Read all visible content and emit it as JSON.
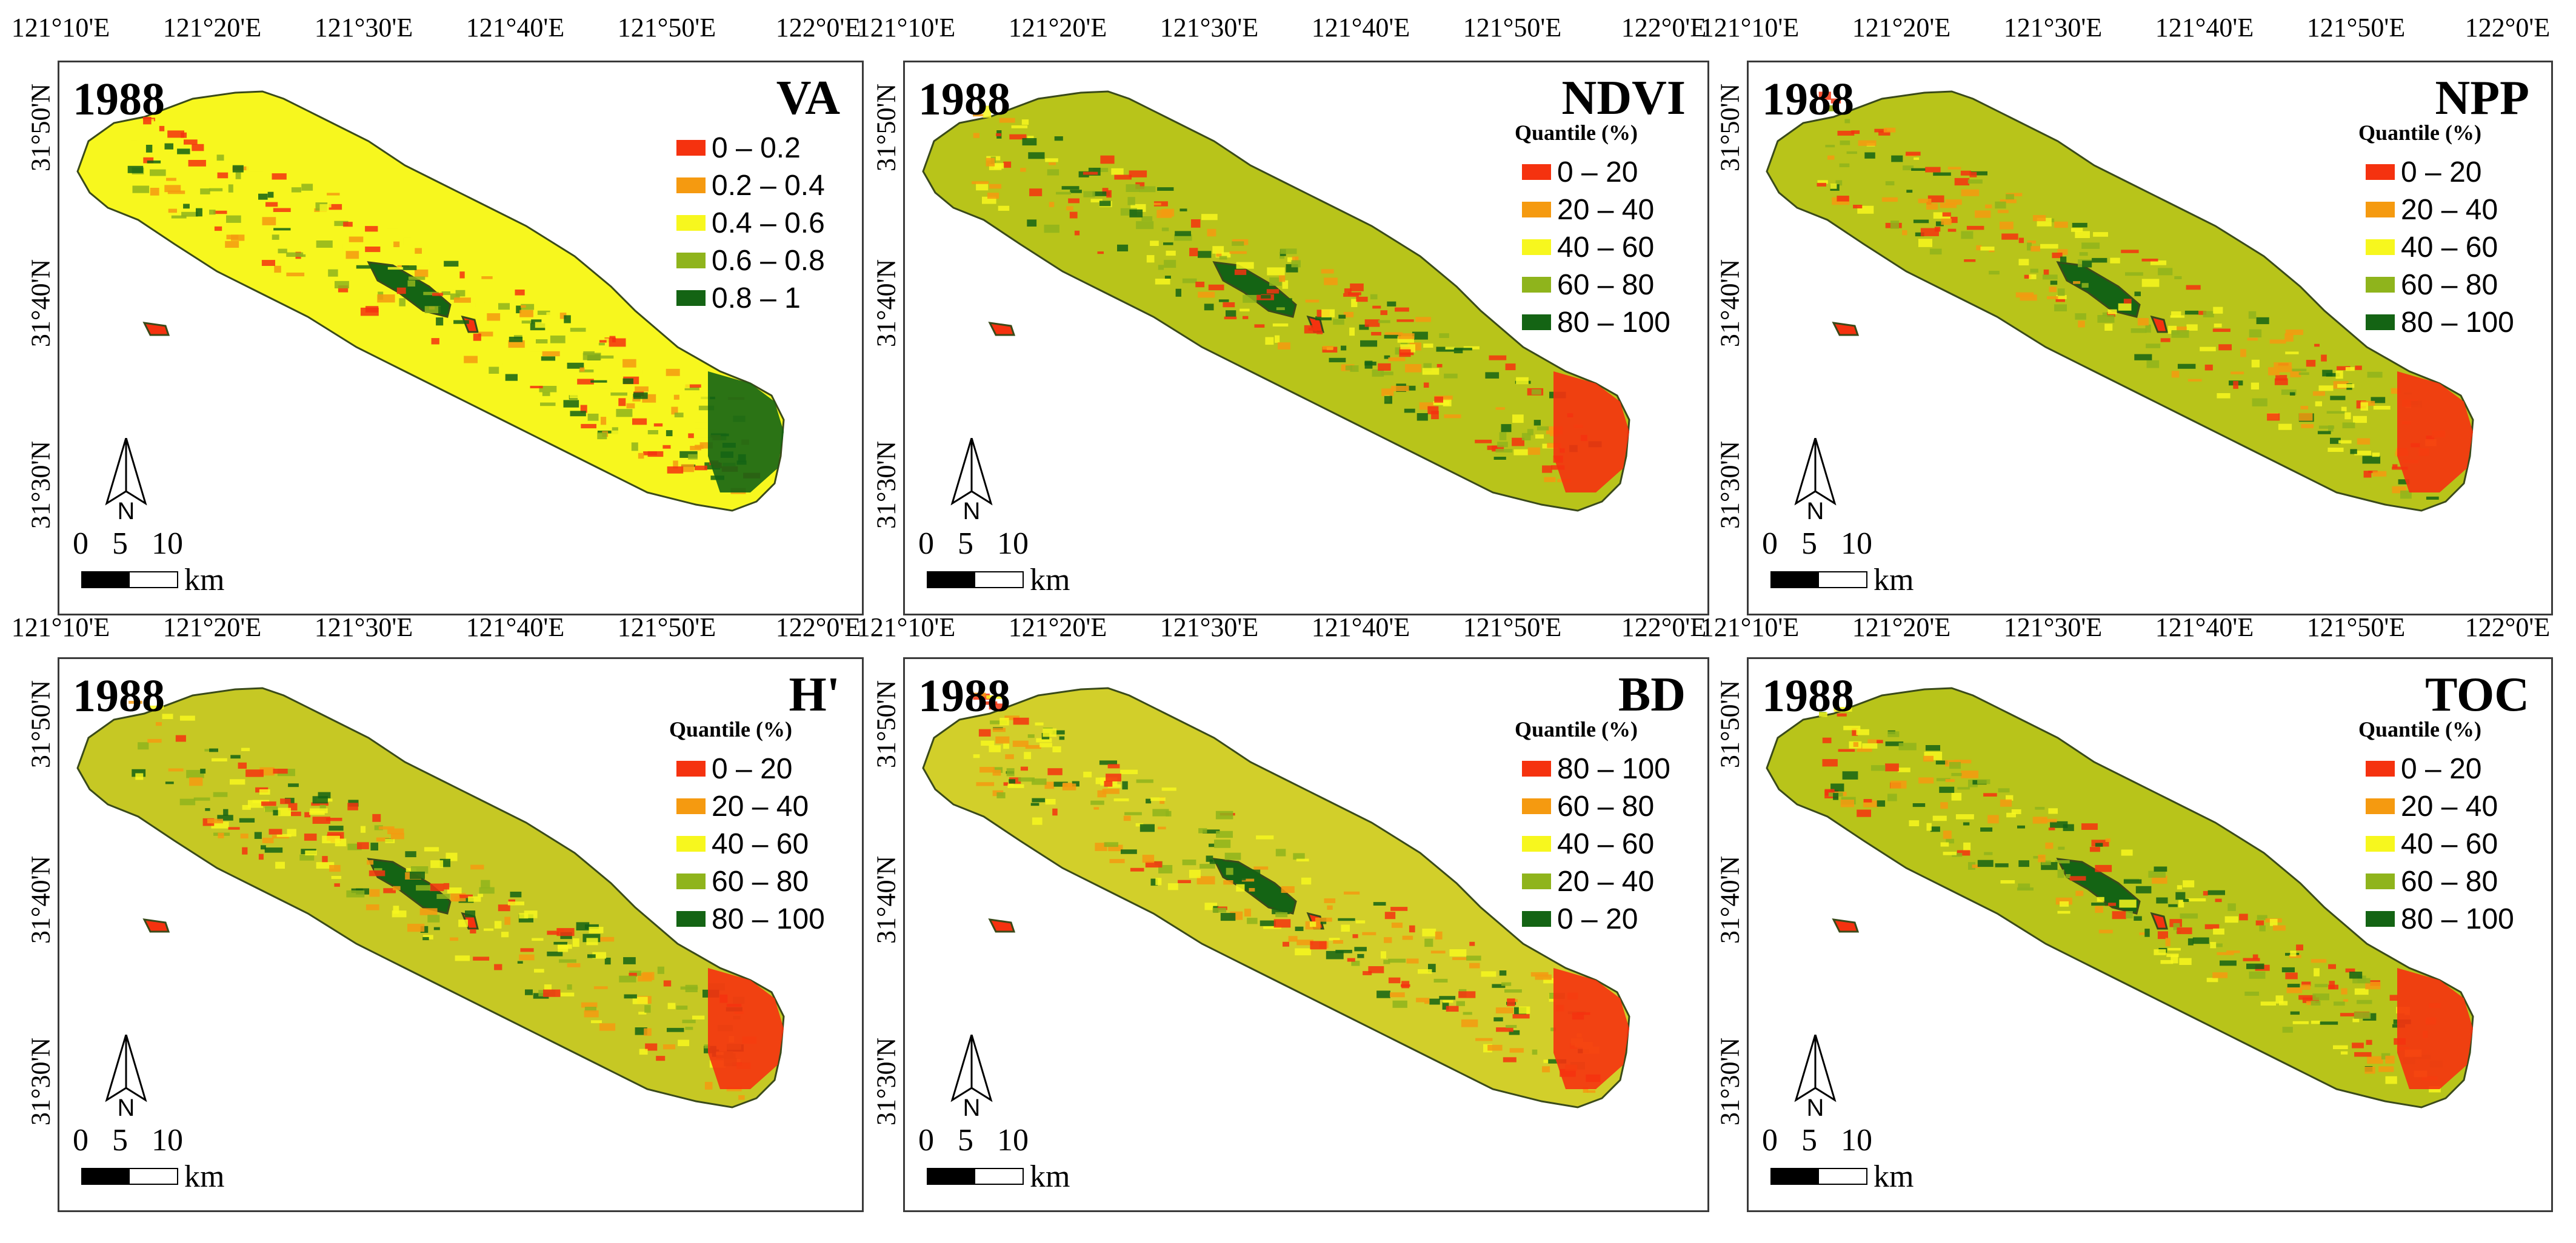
{
  "x_ticks": [
    "121°10'E",
    "121°20'E",
    "121°30'E",
    "121°40'E",
    "121°50'E",
    "122°0'E"
  ],
  "y_ticks": [
    "31°50'N",
    "31°40'N",
    "31°30'N"
  ],
  "colors": {
    "c1": "#f5320f",
    "c2": "#f59a10",
    "c3": "#f7f71e",
    "c4": "#8fb41c",
    "c5": "#146414",
    "outline": "#3a4a1a"
  },
  "scale": {
    "numbers": "0 5 10",
    "unit": "km"
  },
  "north_label": "N",
  "panels": [
    {
      "year": "1988",
      "variable": "VA",
      "quantile_label": "",
      "legend": [
        "0 – 0.2",
        "0.2 – 0.4",
        "0.4 – 0.6",
        "0.6 – 0.8",
        "0.8 – 1"
      ],
      "fill": "#f7f71e"
    },
    {
      "year": "1988",
      "variable": "NDVI",
      "quantile_label": "Quantile (%)",
      "legend": [
        "0 – 20",
        "20 – 40",
        "40 – 60",
        "60 – 80",
        "80 – 100"
      ],
      "fill": "#b8c41a"
    },
    {
      "year": "1988",
      "variable": "NPP",
      "quantile_label": "Quantile (%)",
      "legend": [
        "0 – 20",
        "20 – 40",
        "40 – 60",
        "60 – 80",
        "80 – 100"
      ],
      "fill": "#b8c41a"
    },
    {
      "year": "1988",
      "variable": "H'",
      "quantile_label": "Quantile (%)",
      "legend": [
        "0 – 20",
        "20 – 40",
        "40 – 60",
        "60 – 80",
        "80 – 100"
      ],
      "fill": "#c6c824"
    },
    {
      "year": "1988",
      "variable": "BD",
      "quantile_label": "Quantile (%)",
      "legend": [
        "80 – 100",
        "60 – 80",
        "40 – 60",
        "20 – 40",
        "0 – 20"
      ],
      "fill": "#d2cf2a"
    },
    {
      "year": "1988",
      "variable": "TOC",
      "quantile_label": "Quantile (%)",
      "legend": [
        "0 – 20",
        "20 – 40",
        "40 – 60",
        "60 – 80",
        "80 – 100"
      ],
      "fill": "#b8c41a"
    }
  ]
}
